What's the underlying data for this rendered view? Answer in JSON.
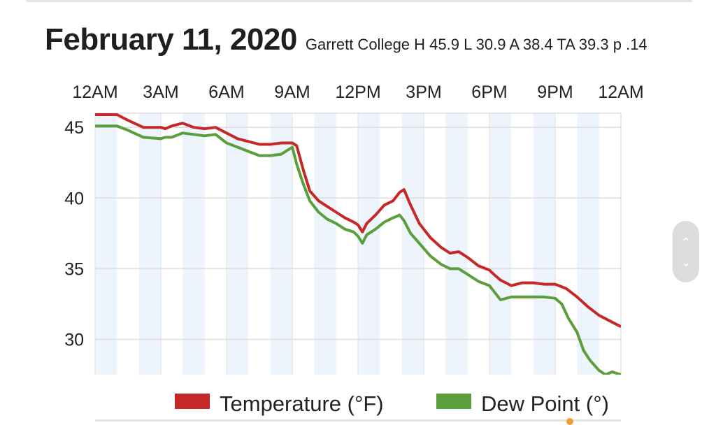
{
  "header": {
    "date": "February 11, 2020",
    "stats": "Garrett College H 45.9 L 30.9 A 38.4 TA 39.3 p .14"
  },
  "chart_data": {
    "type": "line",
    "x_ticks": [
      "12AM",
      "3AM",
      "6AM",
      "9AM",
      "12PM",
      "3PM",
      "6PM",
      "9PM",
      "12AM"
    ],
    "x_unit": "hours",
    "xlim": [
      0,
      24
    ],
    "y_ticks": [
      30,
      35,
      40,
      45
    ],
    "ylim": [
      27.5,
      46
    ],
    "grid": true,
    "legend_position": "bottom",
    "series": [
      {
        "name": "Temperature (°F)",
        "color": "#c62828",
        "x": [
          0,
          1,
          1.5,
          2.2,
          3,
          3.2,
          3.5,
          4.0,
          4.5,
          5.0,
          5.5,
          6.0,
          6.5,
          7.0,
          7.5,
          8.0,
          8.5,
          9.0,
          9.2,
          9.5,
          9.8,
          10.2,
          10.6,
          11.0,
          11.4,
          11.8,
          12.0,
          12.2,
          12.4,
          12.8,
          13.2,
          13.6,
          13.9,
          14.1,
          14.4,
          14.8,
          15.3,
          15.8,
          16.2,
          16.6,
          17.0,
          17.5,
          18.0,
          18.2,
          18.5,
          19.0,
          19.5,
          20.0,
          20.5,
          21.0,
          21.5,
          22.0,
          22.5,
          23.0,
          23.5,
          24.0
        ],
        "values": [
          45.9,
          45.9,
          45.5,
          45.0,
          45.0,
          44.9,
          45.1,
          45.3,
          45.0,
          44.9,
          45.0,
          44.6,
          44.2,
          44.0,
          43.8,
          43.8,
          43.9,
          43.9,
          43.7,
          42.0,
          40.5,
          39.8,
          39.4,
          39.0,
          38.6,
          38.3,
          38.1,
          37.6,
          38.2,
          38.8,
          39.5,
          39.8,
          40.4,
          40.6,
          39.5,
          38.2,
          37.2,
          36.5,
          36.1,
          36.2,
          35.8,
          35.2,
          34.9,
          34.6,
          34.2,
          33.8,
          34.0,
          34.0,
          33.9,
          33.9,
          33.6,
          33.0,
          32.3,
          31.7,
          31.3,
          30.9
        ]
      },
      {
        "name": "Dew Point (°)",
        "color": "#5b9f3d",
        "x": [
          0,
          1,
          1.5,
          2.2,
          3,
          3.2,
          3.5,
          4.0,
          4.5,
          5.0,
          5.5,
          6.0,
          6.5,
          7.0,
          7.5,
          8.0,
          8.5,
          9.0,
          9.2,
          9.5,
          9.8,
          10.2,
          10.6,
          11.0,
          11.4,
          11.8,
          12.0,
          12.2,
          12.4,
          12.8,
          13.2,
          13.6,
          13.9,
          14.1,
          14.4,
          14.8,
          15.3,
          15.8,
          16.2,
          16.6,
          17.0,
          17.5,
          18.0,
          18.2,
          18.5,
          19.0,
          19.5,
          20.0,
          20.5,
          21.0,
          21.3,
          21.6,
          22.0,
          22.3,
          22.6,
          23.0,
          23.3,
          23.6,
          24.0
        ],
        "values": [
          45.1,
          45.1,
          44.8,
          44.3,
          44.2,
          44.3,
          44.3,
          44.6,
          44.5,
          44.4,
          44.5,
          43.9,
          43.6,
          43.3,
          43.0,
          43.0,
          43.1,
          43.6,
          42.4,
          41.0,
          39.8,
          39.0,
          38.5,
          38.2,
          37.8,
          37.6,
          37.3,
          36.8,
          37.4,
          37.8,
          38.3,
          38.6,
          38.8,
          38.4,
          37.5,
          36.8,
          35.9,
          35.3,
          35.0,
          35.0,
          34.6,
          34.1,
          33.8,
          33.4,
          32.8,
          33.0,
          33.0,
          33.0,
          33.0,
          32.9,
          32.5,
          31.5,
          30.5,
          29.2,
          28.5,
          27.8,
          27.5,
          27.7,
          27.5
        ]
      }
    ]
  },
  "ui": {
    "scroll_up": "⌃",
    "scroll_down": "⌄"
  }
}
